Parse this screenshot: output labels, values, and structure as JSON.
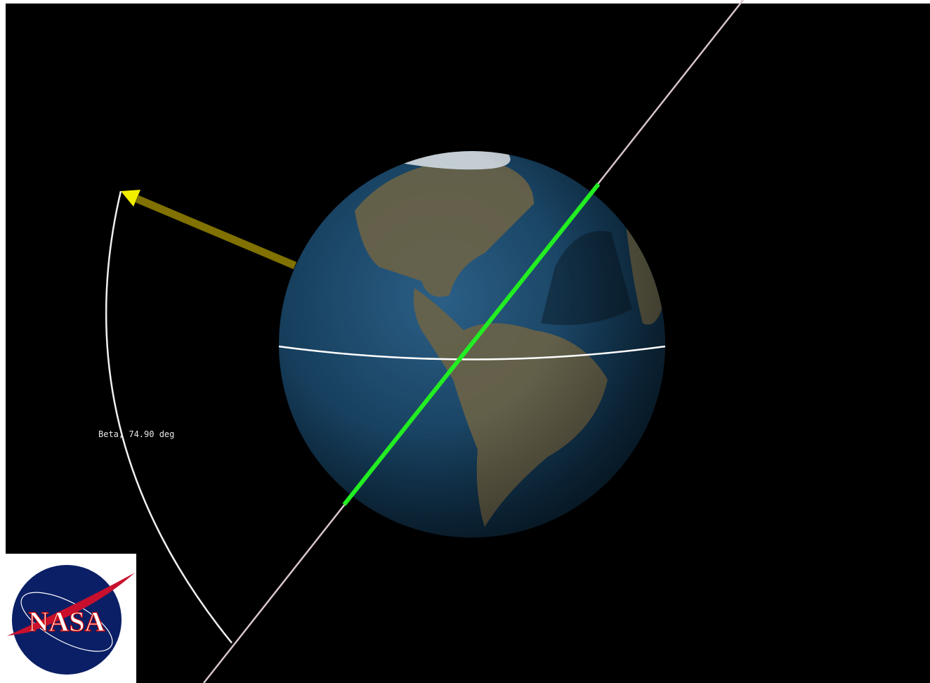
{
  "label": {
    "text": "Beta, 74.90 deg"
  },
  "logo": {
    "text": "NASA"
  }
}
